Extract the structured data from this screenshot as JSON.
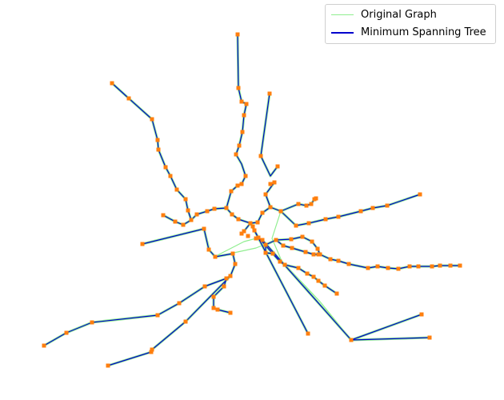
{
  "legend": {
    "original_label": "Original Graph",
    "mst_label": "Minimum Spanning Tree"
  },
  "colors": {
    "original_edge": "#90ee90",
    "mst_edge": "#0000cd",
    "node": "#ff7f0e"
  }
}
